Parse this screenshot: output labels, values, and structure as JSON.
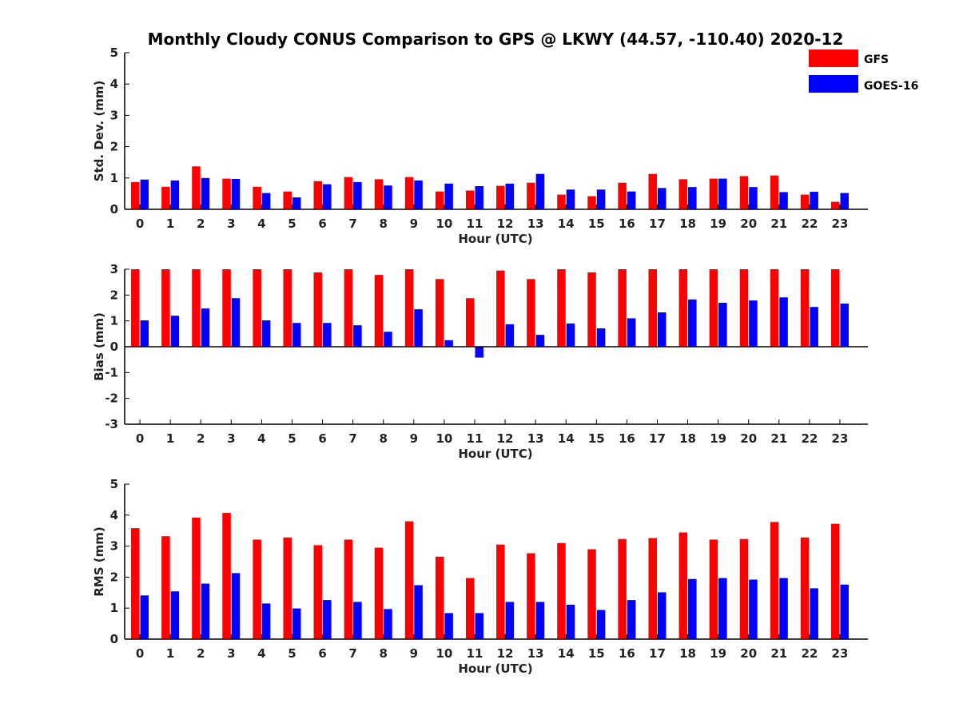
{
  "figure": {
    "title": "Monthly Cloudy CONUS Comparison to GPS @ LKWY (44.57, -110.40) 2020-12"
  },
  "legend": {
    "placement": "top-right",
    "entries": [
      {
        "label": "GFS",
        "color": "#ff0000"
      },
      {
        "label": "GOES-16",
        "color": "#0000ff"
      }
    ]
  },
  "chart_data": [
    {
      "type": "bar",
      "xlabel": "Hour (UTC)",
      "ylabel": "Std. Dev. (mm)",
      "ylim": [
        0,
        5
      ],
      "yticks": [
        "0",
        "1",
        "2",
        "3",
        "4",
        "5"
      ],
      "categories": [
        "0",
        "1",
        "2",
        "3",
        "4",
        "5",
        "6",
        "7",
        "8",
        "9",
        "10",
        "11",
        "12",
        "13",
        "14",
        "15",
        "16",
        "17",
        "18",
        "19",
        "20",
        "21",
        "22",
        "23"
      ],
      "series": [
        {
          "name": "GFS",
          "color": "#ff0000",
          "values": [
            0.87,
            0.72,
            1.37,
            0.98,
            0.72,
            0.57,
            0.9,
            1.03,
            0.96,
            1.03,
            0.57,
            0.6,
            0.75,
            0.85,
            0.47,
            0.42,
            0.85,
            1.13,
            0.96,
            0.98,
            1.06,
            1.08,
            0.47,
            0.24
          ]
        },
        {
          "name": "GOES-16",
          "color": "#0000ff",
          "values": [
            0.95,
            0.92,
            1.0,
            0.97,
            0.52,
            0.38,
            0.8,
            0.87,
            0.76,
            0.92,
            0.82,
            0.74,
            0.82,
            1.13,
            0.63,
            0.63,
            0.57,
            0.68,
            0.71,
            0.98,
            0.71,
            0.55,
            0.56,
            0.52
          ]
        }
      ]
    },
    {
      "type": "bar",
      "xlabel": "Hour (UTC)",
      "ylabel": "Bias (mm)",
      "ylim": [
        -3,
        3
      ],
      "yticks": [
        "-3",
        "-2",
        "-1",
        "0",
        "1",
        "2",
        "3"
      ],
      "categories": [
        "0",
        "1",
        "2",
        "3",
        "4",
        "5",
        "6",
        "7",
        "8",
        "9",
        "10",
        "11",
        "12",
        "13",
        "14",
        "15",
        "16",
        "17",
        "18",
        "19",
        "20",
        "21",
        "22",
        "23"
      ],
      "series": [
        {
          "name": "GFS",
          "color": "#ff0000",
          "values": [
            3.0,
            3.0,
            3.0,
            3.0,
            3.0,
            3.0,
            2.88,
            3.0,
            2.78,
            3.0,
            2.62,
            1.88,
            2.95,
            2.62,
            3.0,
            2.88,
            3.0,
            3.0,
            3.0,
            3.0,
            3.0,
            3.0,
            3.0,
            3.0
          ]
        },
        {
          "name": "GOES-16",
          "color": "#0000ff",
          "values": [
            1.02,
            1.2,
            1.48,
            1.88,
            1.02,
            0.92,
            0.92,
            0.83,
            0.58,
            1.45,
            0.25,
            -0.42,
            0.87,
            0.46,
            0.9,
            0.71,
            1.1,
            1.33,
            1.83,
            1.7,
            1.79,
            1.91,
            1.54,
            1.67
          ]
        }
      ]
    },
    {
      "type": "bar",
      "xlabel": "Hour (UTC)",
      "ylabel": "RMS (mm)",
      "ylim": [
        0,
        5
      ],
      "yticks": [
        "0",
        "1",
        "2",
        "3",
        "4",
        "5"
      ],
      "categories": [
        "0",
        "1",
        "2",
        "3",
        "4",
        "5",
        "6",
        "7",
        "8",
        "9",
        "10",
        "11",
        "12",
        "13",
        "14",
        "15",
        "16",
        "17",
        "18",
        "19",
        "20",
        "21",
        "22",
        "23"
      ],
      "series": [
        {
          "name": "GFS",
          "color": "#ff0000",
          "values": [
            3.58,
            3.32,
            3.92,
            4.07,
            3.21,
            3.28,
            3.03,
            3.21,
            2.95,
            3.8,
            2.66,
            1.97,
            3.05,
            2.77,
            3.1,
            2.9,
            3.23,
            3.26,
            3.44,
            3.21,
            3.23,
            3.78,
            3.28,
            3.72
          ]
        },
        {
          "name": "GOES-16",
          "color": "#0000ff",
          "values": [
            1.41,
            1.54,
            1.79,
            2.13,
            1.15,
            0.99,
            1.26,
            1.2,
            0.97,
            1.74,
            0.84,
            0.84,
            1.2,
            1.2,
            1.11,
            0.94,
            1.26,
            1.51,
            1.94,
            1.97,
            1.92,
            1.97,
            1.64,
            1.76
          ]
        }
      ]
    }
  ]
}
